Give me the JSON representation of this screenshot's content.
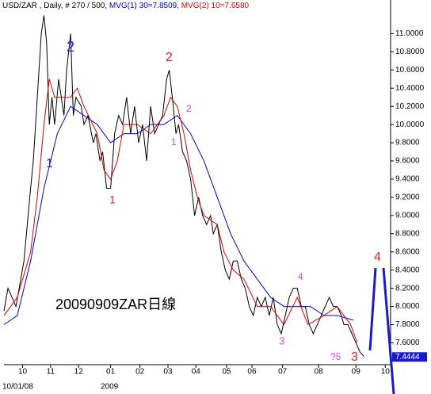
{
  "chart_data": {
    "type": "line",
    "title": "USD/ZAR , Daily, # 270 / 500,",
    "series": [
      {
        "color": "#000000",
        "x": [
          0,
          3,
          9,
          15,
          20,
          22,
          25,
          28,
          30,
          32,
          34,
          36,
          38,
          41,
          45,
          47,
          50,
          52,
          54,
          58,
          60,
          63,
          67,
          69,
          72,
          74,
          77,
          80,
          83,
          86,
          89,
          92,
          95,
          98,
          101,
          104,
          107,
          110,
          113,
          116,
          119,
          122,
          124,
          127,
          129,
          131,
          134,
          137,
          140,
          143,
          146,
          149,
          152,
          155,
          157,
          160,
          163,
          166,
          169,
          172,
          175,
          178,
          181,
          184,
          187,
          190,
          193,
          196,
          199,
          202,
          205,
          208,
          211,
          214,
          217,
          220,
          223,
          226,
          229,
          232,
          235,
          238,
          241,
          244,
          247,
          250,
          253,
          255,
          258,
          261,
          264,
          267,
          270
        ],
        "values": [
          7.95,
          8.2,
          8.0,
          8.5,
          9.3,
          9.6,
          10.3,
          11.0,
          11.2,
          10.9,
          10.0,
          10.3,
          10.0,
          10.5,
          10.1,
          10.6,
          11.0,
          10.1,
          10.3,
          10.2,
          10.0,
          10.1,
          9.8,
          9.9,
          9.6,
          9.7,
          9.3,
          9.3,
          9.9,
          10.1,
          10.0,
          10.3,
          9.9,
          10.2,
          9.8,
          10.0,
          9.6,
          10.2,
          9.9,
          10.0,
          10.1,
          10.5,
          10.6,
          10.2,
          9.9,
          10.0,
          9.7,
          9.6,
          9.4,
          9.0,
          9.2,
          9.0,
          8.9,
          9.0,
          8.8,
          8.9,
          8.6,
          8.4,
          8.3,
          8.5,
          8.5,
          8.3,
          8.2,
          8.0,
          7.9,
          8.1,
          8.0,
          8.1,
          7.9,
          8.1,
          7.8,
          7.7,
          7.9,
          8.1,
          8.2,
          8.2,
          8.0,
          8.0,
          7.8,
          7.7,
          7.8,
          7.9,
          8.0,
          8.1,
          8.0,
          8.0,
          7.9,
          7.8,
          7.8,
          7.7,
          7.6,
          7.5,
          7.45
        ]
      },
      {
        "name": "MVG(1) 30=7.8509,",
        "color": "#0000cc",
        "x": [
          0,
          10,
          20,
          30,
          40,
          50,
          60,
          70,
          80,
          90,
          100,
          110,
          120,
          130,
          140,
          150,
          160,
          170,
          180,
          190,
          200,
          210,
          220,
          230,
          240,
          250,
          262
        ],
        "values": [
          7.8,
          7.9,
          8.5,
          9.3,
          9.9,
          10.2,
          10.1,
          10.0,
          9.8,
          9.9,
          9.9,
          10.0,
          10.0,
          10.1,
          9.9,
          9.6,
          9.2,
          8.8,
          8.5,
          8.3,
          8.1,
          8.0,
          8.0,
          8.0,
          7.9,
          7.9,
          7.85
        ]
      },
      {
        "name": "MVG(2) 10=7.6580",
        "color": "#dd0000",
        "x": [
          0,
          10,
          20,
          25,
          30,
          34,
          38,
          45,
          50,
          55,
          60,
          70,
          75,
          80,
          85,
          90,
          100,
          110,
          120,
          125,
          130,
          135,
          140,
          145,
          150,
          160,
          165,
          172,
          180,
          190,
          200,
          210,
          220,
          228,
          240,
          250,
          260,
          265
        ],
        "values": [
          7.9,
          8.1,
          8.6,
          9.2,
          10.0,
          10.5,
          10.3,
          10.3,
          10.3,
          10.4,
          10.2,
          9.9,
          9.5,
          9.4,
          9.6,
          10.0,
          10.0,
          9.9,
          10.1,
          10.3,
          10.2,
          9.9,
          9.5,
          9.2,
          9.0,
          8.9,
          8.6,
          8.4,
          8.3,
          8.0,
          8.0,
          7.8,
          8.1,
          7.8,
          7.9,
          8.0,
          7.8,
          7.6
        ]
      }
    ],
    "xlim": [
      0,
      290
    ],
    "xticks": [
      {
        "value": 14,
        "label": "10"
      },
      {
        "value": 35,
        "label": "11"
      },
      {
        "value": 56,
        "label": "12"
      },
      {
        "value": 80,
        "label": "01"
      },
      {
        "value": 102,
        "label": "02"
      },
      {
        "value": 123,
        "label": "03"
      },
      {
        "value": 144,
        "label": "04"
      },
      {
        "value": 167,
        "label": "05"
      },
      {
        "value": 186,
        "label": "06"
      },
      {
        "value": 209,
        "label": "07"
      },
      {
        "value": 236,
        "label": "08"
      },
      {
        "value": 264,
        "label": "09"
      },
      {
        "value": 286,
        "label": "10"
      }
    ],
    "ylim": [
      7.36,
      11.3
    ],
    "yticks": [
      {
        "value": 7.6,
        "label": "7.6000"
      },
      {
        "value": 7.8,
        "label": "7.8000"
      },
      {
        "value": 8.0,
        "label": "8.0000"
      },
      {
        "value": 8.2,
        "label": "8.2000"
      },
      {
        "value": 8.4,
        "label": "8.4000"
      },
      {
        "value": 8.6,
        "label": "8.6000"
      },
      {
        "value": 8.8,
        "label": "8.8000"
      },
      {
        "value": 9.0,
        "label": "9.0000"
      },
      {
        "value": 9.2,
        "label": "9.2000"
      },
      {
        "value": 9.4,
        "label": "9.4000"
      },
      {
        "value": 9.6,
        "label": "9.6000"
      },
      {
        "value": 9.8,
        "label": "9.8000"
      },
      {
        "value": 10.0,
        "label": "10.0000"
      },
      {
        "value": 10.2,
        "label": "10.2000"
      },
      {
        "value": 10.4,
        "label": "10.4000"
      },
      {
        "value": 10.6,
        "label": "10.6000"
      },
      {
        "value": 10.8,
        "label": "10.8000"
      },
      {
        "value": 11.0,
        "label": "11.0000"
      }
    ],
    "last_price": 7.4444,
    "start_date": "10/01/08",
    "year_label": "2009",
    "caption": "20090909ZAR日線",
    "annotations": [
      {
        "text": "1",
        "color": "#2222ee"
      },
      {
        "text": "2",
        "color": "#2222ee"
      },
      {
        "text": "1",
        "color": "#dd2222"
      },
      {
        "text": "2",
        "color": "#dd2222"
      },
      {
        "text": "1",
        "color": "#dd44dd"
      },
      {
        "text": "2",
        "color": "#dd44dd"
      },
      {
        "text": "3",
        "color": "#dd44dd"
      },
      {
        "text": "4",
        "color": "#dd44dd"
      },
      {
        "text": "?5",
        "color": "#dd44dd"
      },
      {
        "text": "3",
        "color": "#dd2222"
      },
      {
        "text": "4",
        "color": "#dd2222"
      }
    ]
  }
}
